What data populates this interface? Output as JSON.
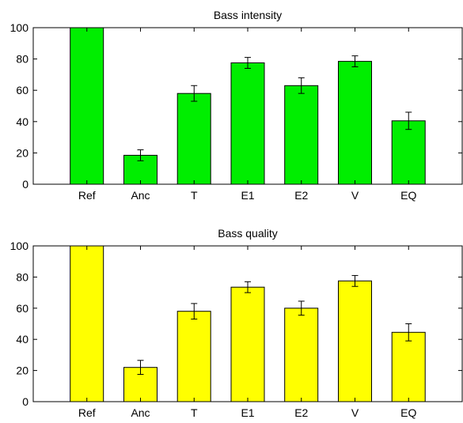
{
  "chart_data": [
    {
      "type": "bar",
      "title": "Bass intensity",
      "categories": [
        "Ref",
        "Anc",
        "T",
        "E1",
        "E2",
        "V",
        "EQ"
      ],
      "values": [
        100,
        18.5,
        58,
        77.5,
        63,
        78.5,
        40.5
      ],
      "error": [
        0,
        3.5,
        5,
        3.5,
        5,
        3.5,
        5.5
      ],
      "ylim": [
        0,
        100
      ],
      "yticks": [
        0,
        20,
        40,
        60,
        80,
        100
      ],
      "bar_color": "#00ee00",
      "grid": false,
      "xlabel": "",
      "ylabel": ""
    },
    {
      "type": "bar",
      "title": "Bass quality",
      "categories": [
        "Ref",
        "Anc",
        "T",
        "E1",
        "E2",
        "V",
        "EQ"
      ],
      "values": [
        100,
        22,
        58,
        73.5,
        60,
        77.5,
        44.5
      ],
      "error": [
        0,
        4.5,
        5,
        3.5,
        4.5,
        3.5,
        5.5
      ],
      "ylim": [
        0,
        100
      ],
      "yticks": [
        0,
        20,
        40,
        60,
        80,
        100
      ],
      "bar_color": "#ffff00",
      "grid": false,
      "xlabel": "",
      "ylabel": ""
    }
  ]
}
